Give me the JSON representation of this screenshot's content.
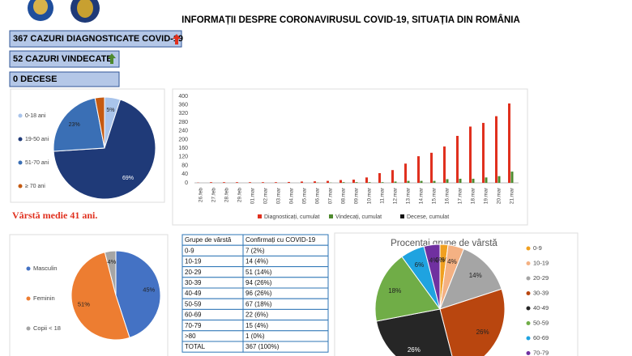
{
  "header": {
    "title": "INFORMAȚII DESPRE CORONAVIRUSUL COVID-19, SITUAȚIA DIN ROMÂNIA"
  },
  "stats": [
    {
      "text": "367 CAZURI DIAGNOSTICATE COVID-19"
    },
    {
      "text": "52 CAZURI VINDECATE"
    },
    {
      "text": "0 DECESE"
    }
  ],
  "note": "Vârstă medie 41 ani.",
  "chart_data": [
    {
      "type": "pie",
      "categories": [
        "0-18 ani",
        "19-50 ani",
        "51-70 ani",
        "≥ 70 ani"
      ],
      "values": [
        5,
        69,
        23,
        3
      ],
      "value_labels": [
        "5%",
        "69%",
        "23%",
        null
      ],
      "colors": [
        "#a9c4eb",
        "#1f3a78",
        "#3a6fb5",
        "#c55a11"
      ]
    },
    {
      "type": "bar",
      "categories": [
        "26.feb",
        "27.feb",
        "28.feb",
        "29.feb",
        "01.mar",
        "02.mar",
        "03.mar",
        "04.mar",
        "05.mar",
        "06.mar",
        "07.mar",
        "08.mar",
        "09.mar",
        "10.mar",
        "11.mar",
        "12.mar",
        "13.mar",
        "14.mar",
        "15.mar",
        "16.mar",
        "17.mar",
        "18.mar",
        "19.mar",
        "20.mar",
        "21.mar"
      ],
      "series": [
        {
          "name": "Diagnosticați, cumulat",
          "color": "#e0301e",
          "values": [
            1,
            3,
            3,
            3,
            3,
            3,
            3,
            4,
            6,
            7,
            9,
            13,
            15,
            25,
            45,
            59,
            89,
            123,
            139,
            168,
            217,
            260,
            277,
            308,
            367
          ]
        },
        {
          "name": "Vindecați, cumulat",
          "color": "#4e8a2e",
          "values": [
            0,
            0,
            0,
            0,
            0,
            0,
            0,
            0,
            0,
            1,
            1,
            3,
            3,
            3,
            3,
            6,
            9,
            9,
            9,
            17,
            19,
            19,
            25,
            31,
            52
          ]
        },
        {
          "name": "Decese, cumulat",
          "color": "#111111",
          "values": [
            0,
            0,
            0,
            0,
            0,
            0,
            0,
            0,
            0,
            0,
            0,
            0,
            0,
            0,
            0,
            0,
            0,
            0,
            0,
            0,
            0,
            0,
            0,
            0,
            0
          ]
        }
      ],
      "ylim": [
        0,
        400
      ],
      "yticks": [
        0,
        40,
        80,
        120,
        160,
        200,
        240,
        280,
        320,
        360,
        400
      ],
      "grid": false
    },
    {
      "type": "pie",
      "categories": [
        "Masculin",
        "Feminin",
        "Copii < 18"
      ],
      "values": [
        45,
        51,
        4
      ],
      "value_labels": [
        "45%",
        "51%",
        "4%"
      ],
      "colors": [
        "#4472c4",
        "#ed7d31",
        "#a5a5a5"
      ]
    },
    {
      "type": "pie",
      "title": "Procentaj grupe de vârstă",
      "categories": [
        "0-9",
        "10-19",
        "20-29",
        "30-39",
        "40-49",
        "50-59",
        "60-69",
        "70-79",
        null
      ],
      "values": [
        2,
        4,
        14,
        26,
        26,
        18,
        6,
        4,
        0
      ],
      "value_labels": [
        "2%",
        "4%",
        "14%",
        "26%",
        "26%",
        "18%",
        "6%",
        "4%",
        "0%"
      ],
      "colors": [
        "#f0a020",
        "#f4b183",
        "#a5a5a5",
        "#b9460f",
        "#262626",
        "#70ad47",
        "#1fa3e0",
        "#7030a0",
        "#c00000"
      ]
    }
  ],
  "table": {
    "header": [
      "Grupe de vârstă",
      "Confirmați cu COVID-19"
    ],
    "rows": [
      [
        "0-9",
        "7 (2%)"
      ],
      [
        "10-19",
        "14 (4%)"
      ],
      [
        "20-29",
        "51 (14%)"
      ],
      [
        "30-39",
        "94 (26%)"
      ],
      [
        "40-49",
        "96 (26%)"
      ],
      [
        "50-59",
        "67 (18%)"
      ],
      [
        "60-69",
        "22 (6%)"
      ],
      [
        "70-79",
        "15 (4%)"
      ],
      [
        ">80",
        "1 (0%)"
      ],
      [
        "TOTAL",
        "367 (100%)"
      ]
    ]
  }
}
